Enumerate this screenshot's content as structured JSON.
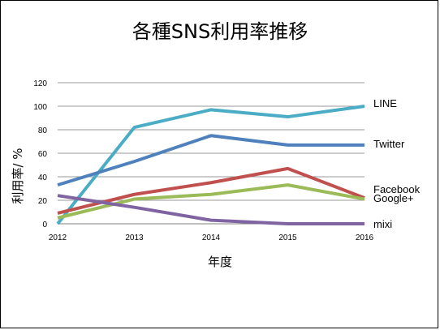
{
  "chart_data": {
    "type": "line",
    "title": "各種SNS利用率推移",
    "xlabel": "年度",
    "ylabel": "利用率/ %",
    "x": [
      "2012",
      "2013",
      "2014",
      "2015",
      "2016"
    ],
    "ylim": [
      0,
      120
    ],
    "yticks": [
      0,
      20,
      40,
      60,
      80,
      100,
      120
    ],
    "grid": "horizontal",
    "legend": "series labels at right end of lines",
    "series": [
      {
        "name": "LINE",
        "color": "#4bacc6",
        "values": [
          0,
          82,
          97,
          91,
          100
        ]
      },
      {
        "name": "Twitter",
        "color": "#4f81bd",
        "values": [
          33,
          53,
          75,
          67,
          67
        ]
      },
      {
        "name": "Facebook",
        "color": "#c0504d",
        "values": [
          9,
          25,
          35,
          47,
          22
        ]
      },
      {
        "name": "Google+",
        "color": "#9bbb59",
        "values": [
          5,
          21,
          25,
          33,
          21
        ]
      },
      {
        "name": "mixi",
        "color": "#8064a2",
        "values": [
          24,
          14,
          3,
          0,
          0
        ]
      }
    ]
  }
}
